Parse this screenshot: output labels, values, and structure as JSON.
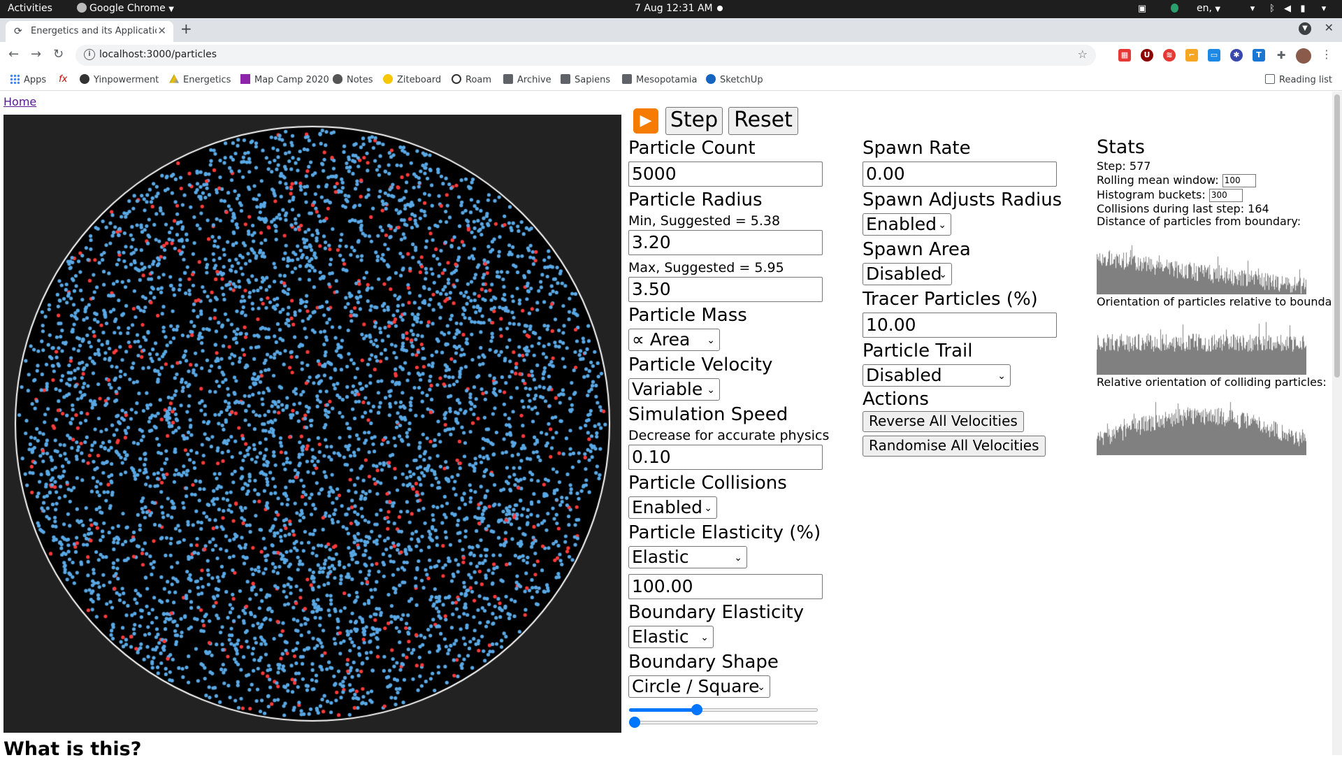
{
  "os": {
    "activities": "Activities",
    "app_name": "Google Chrome",
    "clock": "7 Aug  12:31 AM",
    "lang": "en,"
  },
  "browser": {
    "tab_title": "Energetics and its Application",
    "url": "localhost:3000/particles",
    "bookmarks": [
      "Apps",
      "Yinpowerment",
      "Energetics",
      "Map Camp 2020",
      "Notes",
      "Ziteboard",
      "Roam",
      "Archive",
      "Sapiens",
      "Mesopotamia",
      "SketchUp"
    ],
    "reading_list": "Reading list"
  },
  "page": {
    "home_link": "Home",
    "play_label": "▶️",
    "step_label": "Step",
    "reset_label": "Reset",
    "what_heading": "What is this?",
    "left_controls": {
      "particle_count": {
        "label": "Particle Count",
        "value": "5000"
      },
      "particle_radius": {
        "label": "Particle Radius",
        "min_label": "Min, Suggested = 5.38",
        "min_value": "3.20",
        "max_label": "Max, Suggested = 5.95",
        "max_value": "3.50"
      },
      "particle_mass": {
        "label": "Particle Mass",
        "value": "∝ Area"
      },
      "particle_velocity": {
        "label": "Particle Velocity",
        "value": "Variable"
      },
      "simulation_speed": {
        "label": "Simulation Speed",
        "hint": "Decrease for accurate physics",
        "value": "0.10"
      },
      "particle_collisions": {
        "label": "Particle Collisions",
        "value": "Enabled"
      },
      "particle_elasticity": {
        "label": "Particle Elasticity (%)",
        "select_value": "Elastic",
        "value": "100.00"
      },
      "boundary_elasticity": {
        "label": "Boundary Elasticity",
        "value": "Elastic"
      },
      "boundary_shape": {
        "label": "Boundary Shape",
        "value": "Circle / Square",
        "slider1": 0.35,
        "slider2": 0.0
      }
    },
    "mid_controls": {
      "spawn_rate": {
        "label": "Spawn Rate",
        "value": "0.00"
      },
      "spawn_adjusts_radius": {
        "label": "Spawn Adjusts Radius",
        "value": "Enabled"
      },
      "spawn_area": {
        "label": "Spawn Area",
        "value": "Disabled"
      },
      "tracer_particles": {
        "label": "Tracer Particles (%)",
        "value": "10.00"
      },
      "particle_trail": {
        "label": "Particle Trail",
        "value": "Disabled"
      },
      "actions": {
        "label": "Actions",
        "reverse": "Reverse All Velocities",
        "randomise": "Randomise All Velocities"
      }
    },
    "stats": {
      "title": "Stats",
      "step": "Step: 577",
      "rolling_label": "Rolling mean window:",
      "rolling_value": "100",
      "buckets_label": "Histogram buckets:",
      "buckets_value": "300",
      "collisions": "Collisions during last step: 164",
      "dist_label": "Distance of particles from boundary:",
      "orient_label": "Orientation of particles relative to boundary:",
      "rel_label": "Relative orientation of colliding particles:"
    }
  },
  "colors": {
    "particle": "#5aa9e6",
    "tracer": "#ff3b3b",
    "canvas_bg": "#222222",
    "circle_bg": "#000000",
    "histogram": "#808080",
    "slider": "#0075ff"
  }
}
